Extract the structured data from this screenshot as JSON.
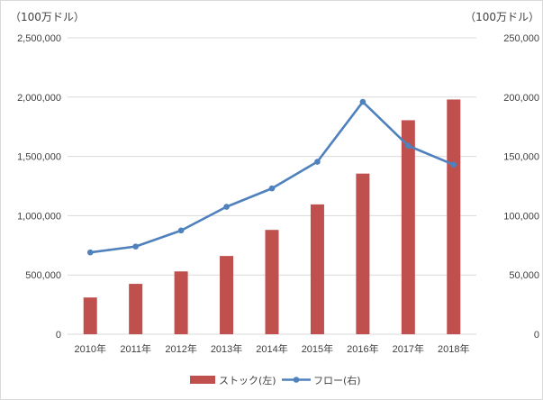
{
  "chart_data": {
    "type": "bar",
    "categories": [
      "2010年",
      "2011年",
      "2012年",
      "2013年",
      "2014年",
      "2015年",
      "2016年",
      "2017年",
      "2018年"
    ],
    "series": [
      {
        "name": "ストック(左)",
        "type": "bar",
        "axis": "left",
        "color": "#c0504d",
        "values": [
          310000,
          425000,
          530000,
          660000,
          880000,
          1095000,
          1355000,
          1805000,
          1980000
        ]
      },
      {
        "name": "フロー(右)",
        "type": "line",
        "axis": "right",
        "color": "#4f81bd",
        "values": [
          69000,
          74000,
          87500,
          107500,
          123000,
          145500,
          196000,
          159000,
          143000
        ]
      }
    ],
    "y_left": {
      "label": "（100万ドル）",
      "lim": [
        0,
        2500000
      ],
      "ticks": [
        "0",
        "500,000",
        "1,000,000",
        "1,500,000",
        "2,000,000",
        "2,500,000"
      ]
    },
    "y_right": {
      "label": "（100万ドル）",
      "lim": [
        0,
        250000
      ],
      "ticks": [
        "0",
        "50,000",
        "100,000",
        "150,000",
        "200,000",
        "250,000"
      ]
    },
    "grid": true,
    "legend_position": "bottom"
  }
}
